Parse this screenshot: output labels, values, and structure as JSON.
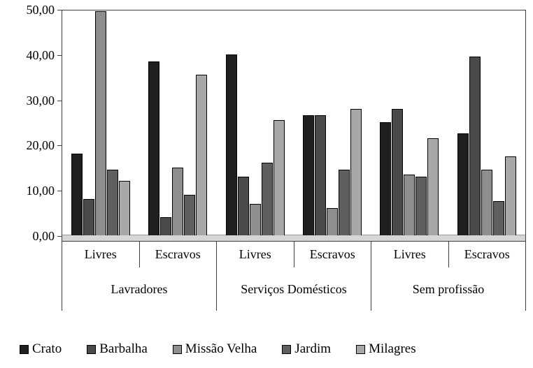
{
  "chart_data": {
    "type": "bar",
    "title": "",
    "xlabel": "",
    "ylabel": "",
    "ylim": [
      0,
      50
    ],
    "grid": false,
    "legend_position": "bottom",
    "yticks": [
      {
        "label": "50,00",
        "value": 50
      },
      {
        "label": "40,00",
        "value": 40
      },
      {
        "label": "30,00",
        "value": 30
      },
      {
        "label": "20,00",
        "value": 20
      },
      {
        "label": "10,00",
        "value": 10
      },
      {
        "label": "0,00",
        "value": 0
      }
    ],
    "group_labels": [
      "Lavradores",
      "Serviços Domésticos",
      "Sem profissão"
    ],
    "subgroups": [
      "Livres",
      "Escravos",
      "Livres",
      "Escravos",
      "Livres",
      "Escravos"
    ],
    "series": [
      {
        "name": "Crato",
        "color": "#1f1f1f",
        "values": [
          18.0,
          38.5,
          40.0,
          26.5,
          25.0,
          22.5
        ]
      },
      {
        "name": "Barbalha",
        "color": "#4a4a4a",
        "values": [
          8.0,
          4.0,
          13.0,
          26.5,
          28.0,
          39.5
        ]
      },
      {
        "name": "Missão Velha",
        "color": "#8f8f8f",
        "values": [
          49.5,
          15.0,
          7.0,
          6.0,
          13.5,
          14.5
        ]
      },
      {
        "name": "Jardim",
        "color": "#5f5f5f",
        "values": [
          14.5,
          9.0,
          16.0,
          14.5,
          13.0,
          7.5
        ]
      },
      {
        "name": "Milagres",
        "color": "#a8a8a8",
        "values": [
          12.0,
          35.5,
          25.5,
          28.0,
          21.5,
          17.5
        ]
      }
    ]
  }
}
